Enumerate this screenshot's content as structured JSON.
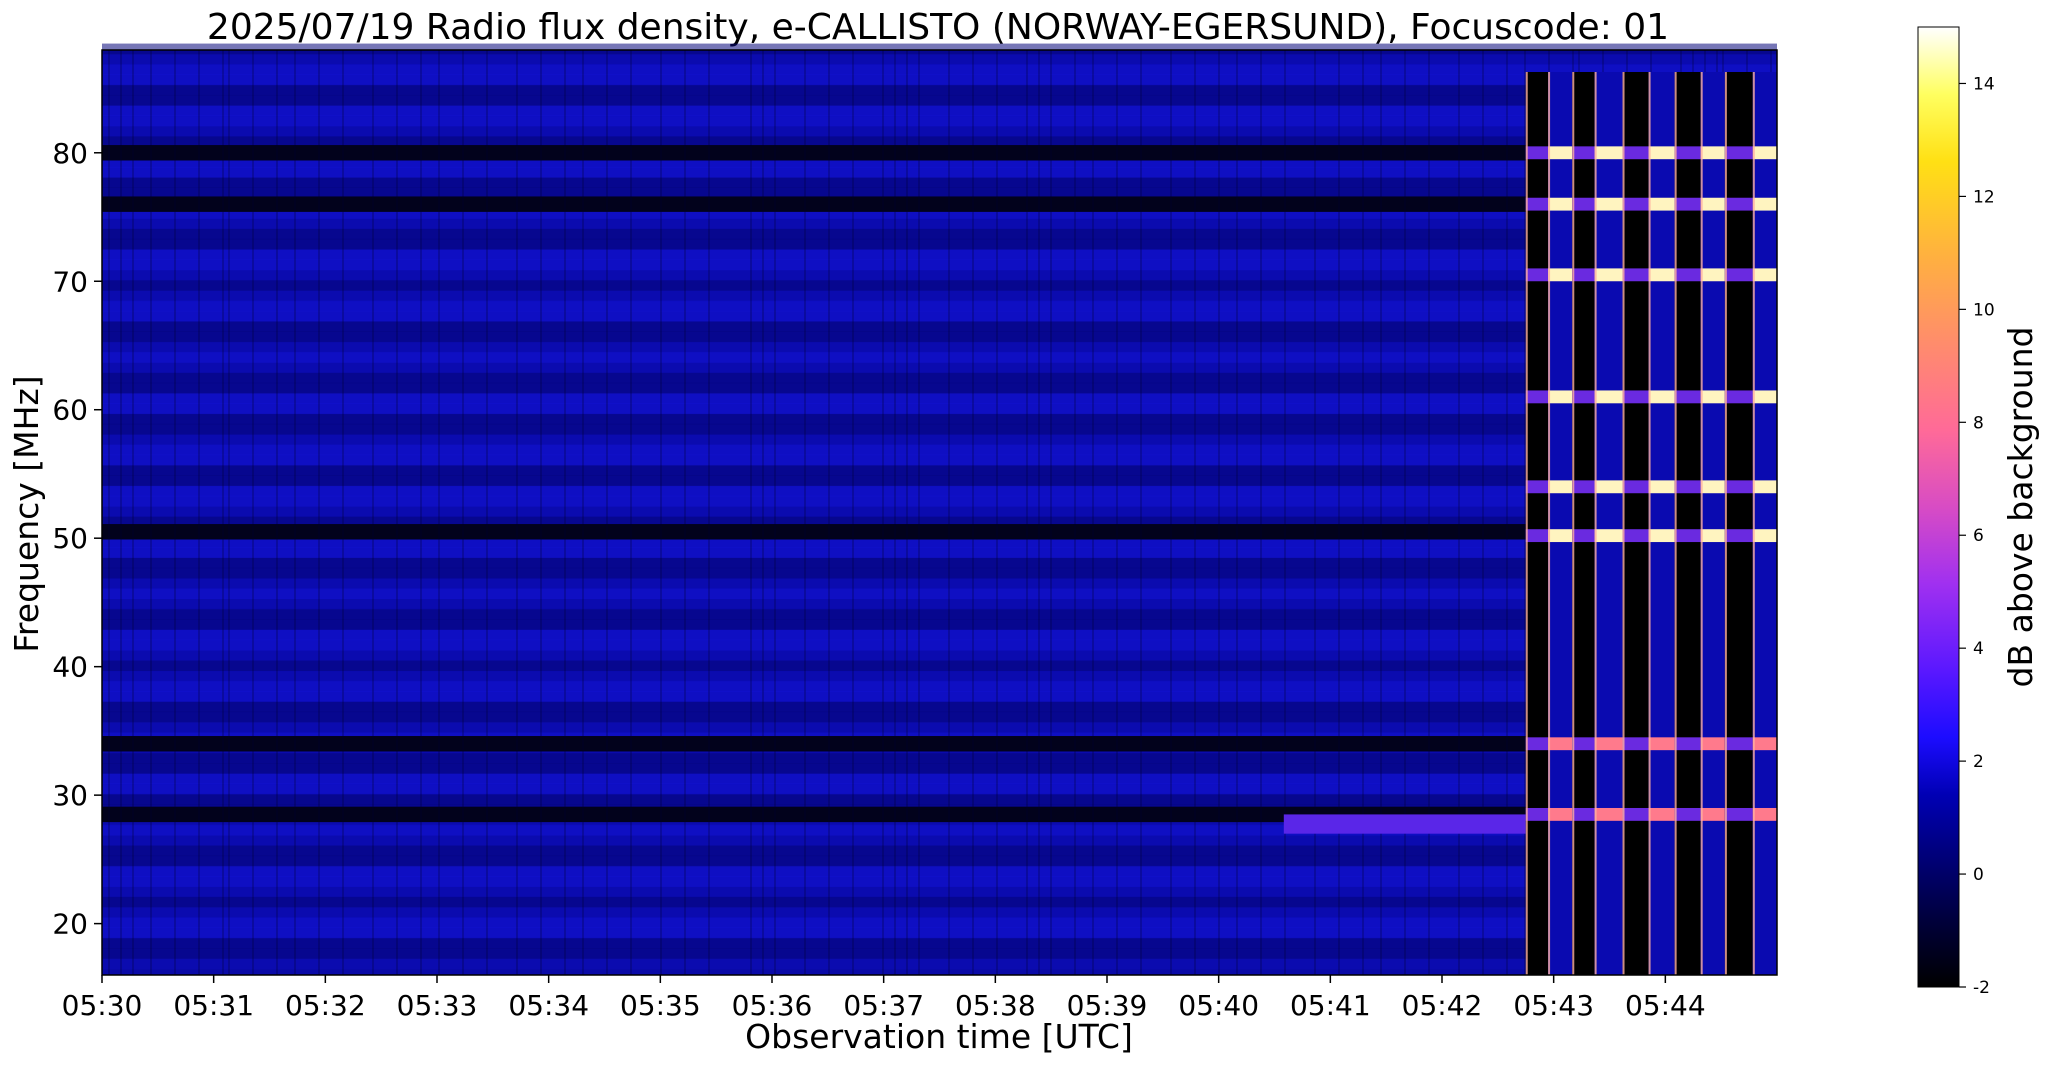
{
  "chart_data": {
    "type": "heatmap",
    "title": "2025/07/19  Radio flux density, e-CALLISTO (NORWAY-EGERSUND), Focuscode: 01",
    "xlabel": "Observation time [UTC]",
    "ylabel": "Frequency [MHz]",
    "x_ticks": [
      "05:30",
      "05:31",
      "05:32",
      "05:33",
      "05:34",
      "05:35",
      "05:36",
      "05:37",
      "05:38",
      "05:39",
      "05:40",
      "05:41",
      "05:42",
      "05:43",
      "05:44"
    ],
    "x_range_minutes": [
      0,
      15
    ],
    "y_ticks": [
      20,
      30,
      40,
      50,
      60,
      70,
      80
    ],
    "ylim": [
      16,
      88
    ],
    "colorbar": {
      "label": "dB above background",
      "ticks": [
        -2,
        0,
        2,
        4,
        6,
        8,
        10,
        12,
        14
      ],
      "range": [
        -2,
        15
      ],
      "colormap": "gnuplot2"
    },
    "background_level_db": 1,
    "dark_band_frequencies_mhz": [
      28.5,
      34,
      50.5,
      76,
      80
    ],
    "interference_bands_mhz": [
      28.5,
      34,
      50.2,
      54,
      61,
      70.5,
      76,
      80
    ],
    "interference_start_time": "05:42:45",
    "interference_columns_time": [
      "05:42:45",
      "05:42:57",
      "05:43:10",
      "05:43:22",
      "05:43:37",
      "05:43:51",
      "05:44:05",
      "05:44:19",
      "05:44:32",
      "05:44:47"
    ],
    "enhanced_band": {
      "freq_range_mhz": [
        27,
        28.5
      ],
      "time_range": [
        "05:40:35",
        "05:42:45"
      ],
      "level_db": 5
    }
  }
}
